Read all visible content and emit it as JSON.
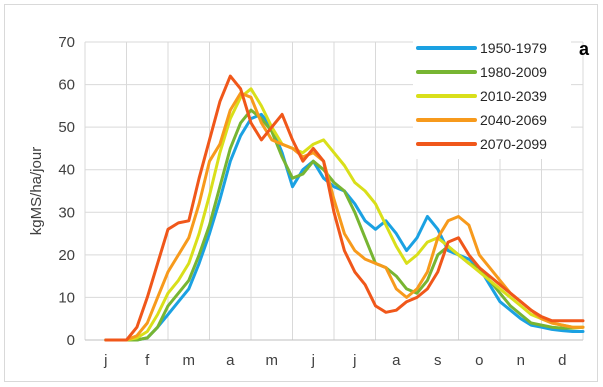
{
  "chart_data": {
    "type": "line",
    "panel_label": "a",
    "ylabel": "kgMS/ha/jour",
    "xlabel": "",
    "ylim": [
      0,
      70
    ],
    "yticks": [
      0,
      10,
      20,
      30,
      40,
      50,
      60,
      70
    ],
    "categories": [
      "j",
      "f",
      "m",
      "a",
      "m",
      "j",
      "j",
      "a",
      "s",
      "o",
      "n",
      "d"
    ],
    "grid": true,
    "legend_position": "top-right",
    "x": [
      0,
      0.25,
      0.5,
      0.75,
      1,
      1.25,
      1.5,
      1.75,
      2,
      2.25,
      2.5,
      2.75,
      3,
      3.25,
      3.5,
      3.75,
      4,
      4.25,
      4.5,
      4.75,
      5,
      5.25,
      5.5,
      5.75,
      6,
      6.25,
      6.5,
      6.75,
      7,
      7.25,
      7.5,
      7.75,
      8,
      8.25,
      8.5,
      8.75,
      9,
      9.25,
      9.5,
      9.75,
      10,
      10.25,
      10.5,
      10.75,
      11,
      11.25,
      11.5
    ],
    "series": [
      {
        "name": "1950-1979",
        "color": "#1ba1e2",
        "values": [
          0,
          0,
          0,
          0,
          0.5,
          3,
          6,
          9,
          12,
          18,
          25,
          33,
          42,
          48,
          52,
          53,
          50,
          44,
          36,
          40,
          42,
          38,
          36,
          35,
          32,
          28,
          26,
          28,
          25,
          21,
          24,
          29,
          26,
          21,
          20,
          19,
          17,
          13,
          9,
          7,
          5,
          3.5,
          3,
          2.5,
          2.2,
          2,
          2
        ]
      },
      {
        "name": "1980-2009",
        "color": "#77b532",
        "values": [
          0,
          0,
          0,
          0,
          0.5,
          3,
          8,
          11,
          14,
          20,
          27,
          36,
          45,
          51,
          54,
          52,
          49,
          43,
          38,
          39,
          42,
          40,
          37,
          35,
          30,
          24,
          18,
          17,
          15,
          12,
          11,
          14,
          20,
          22,
          20,
          18,
          17,
          14,
          11,
          8,
          6,
          4,
          3.5,
          3,
          2.8,
          2.8,
          3
        ]
      },
      {
        "name": "2010-2039",
        "color": "#d9df1a",
        "values": [
          0,
          0,
          0,
          0.5,
          2,
          6,
          11,
          14,
          18,
          25,
          34,
          44,
          52,
          57,
          59,
          55,
          50,
          46,
          45,
          44,
          46,
          47,
          44,
          41,
          37,
          35,
          32,
          27,
          22,
          18,
          20,
          23,
          24,
          22,
          20,
          18,
          16,
          14,
          12,
          10,
          8,
          6,
          5,
          4,
          3.5,
          3,
          3
        ]
      },
      {
        "name": "2040-2069",
        "color": "#f79a1c",
        "values": [
          0,
          0,
          0,
          1,
          4,
          10,
          16,
          20,
          24,
          32,
          42,
          46,
          54,
          58,
          57,
          51,
          47,
          46,
          45,
          43,
          44,
          42,
          33,
          25,
          21,
          19,
          18,
          17,
          12,
          10,
          12,
          16,
          24,
          28,
          29,
          27,
          20,
          17,
          14,
          11,
          9,
          7,
          5,
          4,
          3.5,
          3,
          3
        ]
      },
      {
        "name": "2070-2099",
        "color": "#f0571a",
        "values": [
          0,
          0,
          0,
          3,
          10,
          18,
          26,
          27.5,
          28,
          38,
          47,
          56,
          62,
          59,
          51,
          47,
          50,
          53,
          47,
          42,
          45,
          42,
          30,
          21,
          16,
          13,
          8,
          6.5,
          7,
          9,
          10,
          12,
          16,
          23,
          24,
          20,
          17,
          15,
          13,
          11,
          9,
          7,
          5.5,
          4.5,
          4.5,
          4.5,
          4.5
        ]
      }
    ]
  }
}
